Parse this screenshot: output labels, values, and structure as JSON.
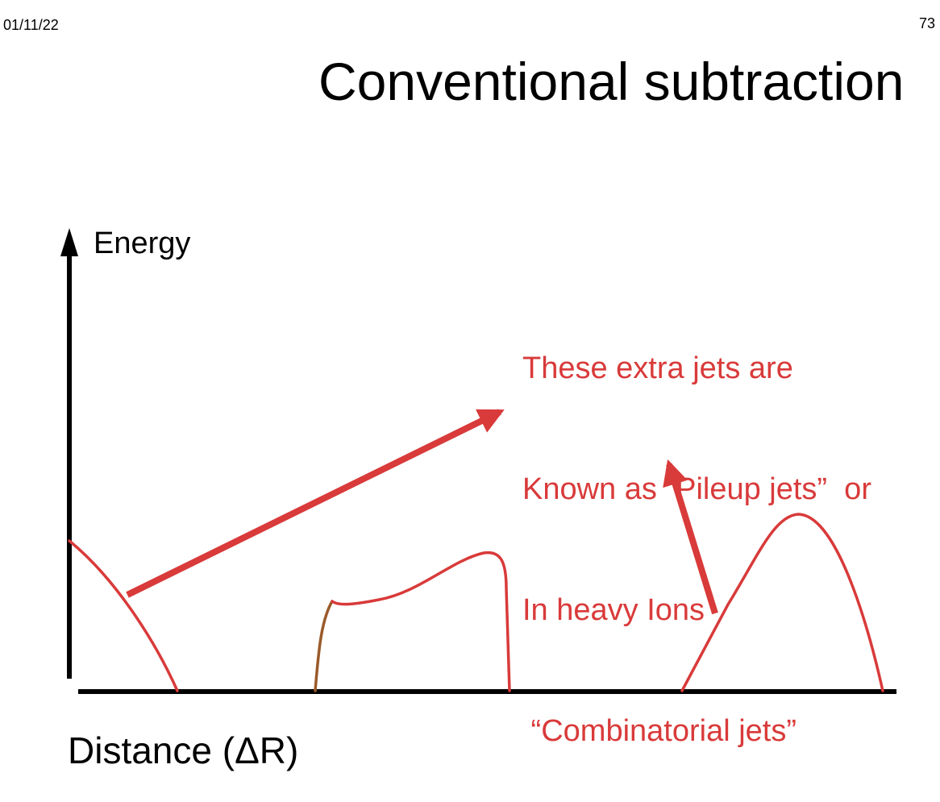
{
  "slide": {
    "date": "01/11/22",
    "page_number": "73",
    "title": "Conventional subtraction"
  },
  "diagram": {
    "y_axis_label": "Energy",
    "x_axis_label": "Distance (ΔR)",
    "annotation": {
      "lines": [
        "These extra jets are",
        "Known as “Pileup jets”  or",
        "In heavy Ions",
        " “Combinatorial jets”"
      ]
    }
  },
  "colors": {
    "axis": "#000000",
    "curve": "#d93a3a",
    "curve_edge": "#9a5a2a",
    "annotation": "#d93a3a",
    "background": "#ffffff"
  }
}
